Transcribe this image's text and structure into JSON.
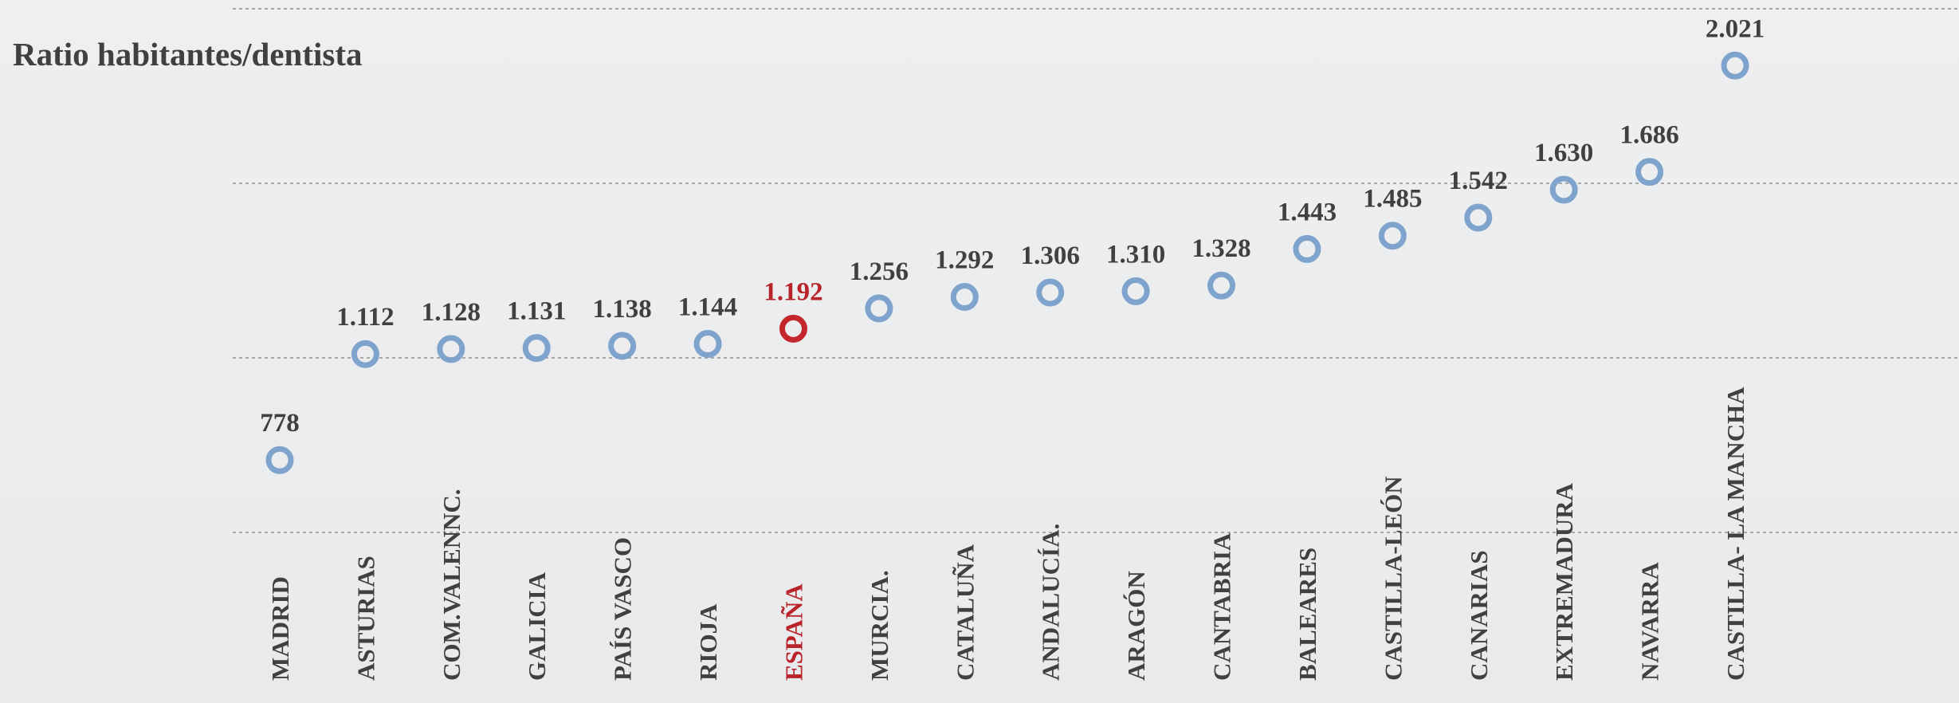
{
  "chart_data": {
    "type": "dot",
    "title": "Ratio habitantes/dentista",
    "categories": [
      "MADRID",
      "ASTURIAS",
      "COM.VALENNC.",
      "GALICIA",
      "PAÍS VASCO",
      "RIOJA",
      "ESPAÑA",
      "MURCIA.",
      "CATALUÑA",
      "ANDALUCÍA.",
      "ARAGÓN",
      "CANTABRIA",
      "BALEARES",
      "CASTILLA-LEÓN",
      "CANARIAS",
      "EXTREMADURA",
      "NAVARRA",
      "CASTILLA- LA MANCHA"
    ],
    "values": [
      778,
      1112,
      1128,
      1131,
      1138,
      1144,
      1192,
      1256,
      1292,
      1306,
      1310,
      1328,
      1443,
      1485,
      1542,
      1630,
      1686,
      2021
    ],
    "value_labels": [
      "778",
      "1.112",
      "1.128",
      "1.131",
      "1.138",
      "1.144",
      "1.192",
      "1.256",
      "1.292",
      "1.306",
      "1.310",
      "1.328",
      "1.443",
      "1.485",
      "1.542",
      "1.630",
      "1.686",
      "2.021"
    ],
    "colors": [
      "#7ea3cc",
      "#7ea3cc",
      "#7ea3cc",
      "#7ea3cc",
      "#7ea3cc",
      "#7ea3cc",
      "#c3272b",
      "#7ea3cc",
      "#7ea3cc",
      "#7ea3cc",
      "#7ea3cc",
      "#7ea3cc",
      "#7ea3cc",
      "#7ea3cc",
      "#7ea3cc",
      "#7ea3cc",
      "#7ea3cc",
      "#7ea3cc"
    ],
    "label_colors": [
      "#404040",
      "#404040",
      "#404040",
      "#404040",
      "#404040",
      "#404040",
      "#b8242a",
      "#404040",
      "#404040",
      "#404040",
      "#404040",
      "#404040",
      "#404040",
      "#404040",
      "#404040",
      "#404040",
      "#404040",
      "#404040"
    ],
    "ylim": [
      550,
      2200
    ],
    "yticks": [
      550,
      1100,
      1650,
      2200
    ],
    "grid": true
  }
}
